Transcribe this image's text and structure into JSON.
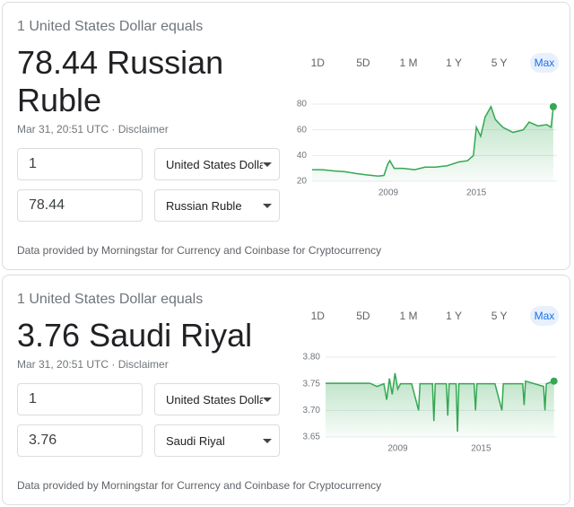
{
  "cards": [
    {
      "header": "1 United States Dollar equals",
      "amount": "78.44 Russian Ruble",
      "timestamp": "Mar 31, 20:51 UTC",
      "disclaimer": "Disclaimer",
      "from_amount": "1",
      "from_currency": "United States Dollar",
      "to_amount": "78.44",
      "to_currency": "Russian Ruble",
      "ranges": [
        "1D",
        "5D",
        "1 M",
        "1 Y",
        "5 Y",
        "Max"
      ],
      "active_range_index": 5,
      "footer": "Data provided by Morningstar for Currency and Coinbase for Cryptocurrency",
      "chart": {
        "type": "line",
        "x": [
          2003.8,
          2004.5,
          2005.3,
          2006,
          2006.8,
          2007.5,
          2008.3,
          2008.7,
          2008.95,
          2009.1,
          2009.4,
          2010,
          2010.8,
          2011.5,
          2012.2,
          2013,
          2013.8,
          2014.4,
          2014.8,
          2015.0,
          2015.3,
          2015.6,
          2016.0,
          2016.3,
          2016.8,
          2017.5,
          2018.2,
          2018.6,
          2019.2,
          2019.8,
          2020.1,
          2020.25
        ],
        "series": [
          {
            "color": "#34a853",
            "values": [
              29,
              29,
              28,
              27.5,
              26,
              25,
              24,
              24.5,
              33,
              36,
              30,
              30,
              29,
              31,
              31,
              32,
              35,
              36,
              40,
              62,
              55,
              70,
              78,
              68,
              62,
              58,
              60,
              66,
              63,
              64,
              62,
              78
            ]
          }
        ],
        "xlim": [
          2003.8,
          2020.5
        ],
        "xticks": [
          2009,
          2015
        ],
        "ylim": [
          20,
          80
        ],
        "yticks": [
          20,
          40,
          60,
          80
        ],
        "grid": true
      }
    },
    {
      "header": "1 United States Dollar equals",
      "amount": "3.76 Saudi Riyal",
      "timestamp": "Mar 31, 20:51 UTC",
      "disclaimer": "Disclaimer",
      "from_amount": "1",
      "from_currency": "United States Dollar",
      "to_amount": "3.76",
      "to_currency": "Saudi Riyal",
      "ranges": [
        "1D",
        "5D",
        "1 M",
        "1 Y",
        "5 Y",
        "Max"
      ],
      "active_range_index": 5,
      "footer": "Data provided by Morningstar for Currency and Coinbase for Cryptocurrency",
      "chart": {
        "type": "line",
        "x": [
          2003.8,
          2007,
          2007.5,
          2008,
          2008.2,
          2008.4,
          2008.6,
          2008.8,
          2009,
          2009.2,
          2010,
          2010.5,
          2010.6,
          2011.5,
          2011.6,
          2011.7,
          2012.5,
          2012.6,
          2012.7,
          2013.2,
          2013.3,
          2013.4,
          2014.5,
          2014.6,
          2014.7,
          2016,
          2016.5,
          2016.6,
          2018,
          2018.1,
          2018.2,
          2019.5,
          2019.6,
          2019.7,
          2020.25
        ],
        "series": [
          {
            "color": "#34a853",
            "values": [
              3.751,
              3.751,
              3.745,
              3.75,
              3.72,
              3.76,
              3.73,
              3.77,
              3.74,
              3.75,
              3.75,
              3.7,
              3.75,
              3.75,
              3.68,
              3.75,
              3.75,
              3.69,
              3.75,
              3.75,
              3.66,
              3.75,
              3.75,
              3.7,
              3.75,
              3.75,
              3.7,
              3.75,
              3.75,
              3.71,
              3.755,
              3.745,
              3.7,
              3.75,
              3.755
            ]
          }
        ],
        "xlim": [
          2003.8,
          2020.4
        ],
        "xticks": [
          2009,
          2015
        ],
        "ylim": [
          3.65,
          3.8
        ],
        "yticks": [
          {
            "value": 3.8,
            "label": "3.80"
          },
          3.75,
          {
            "value": 3.7,
            "label": "3.70"
          },
          3.65
        ],
        "grid": true
      }
    }
  ]
}
